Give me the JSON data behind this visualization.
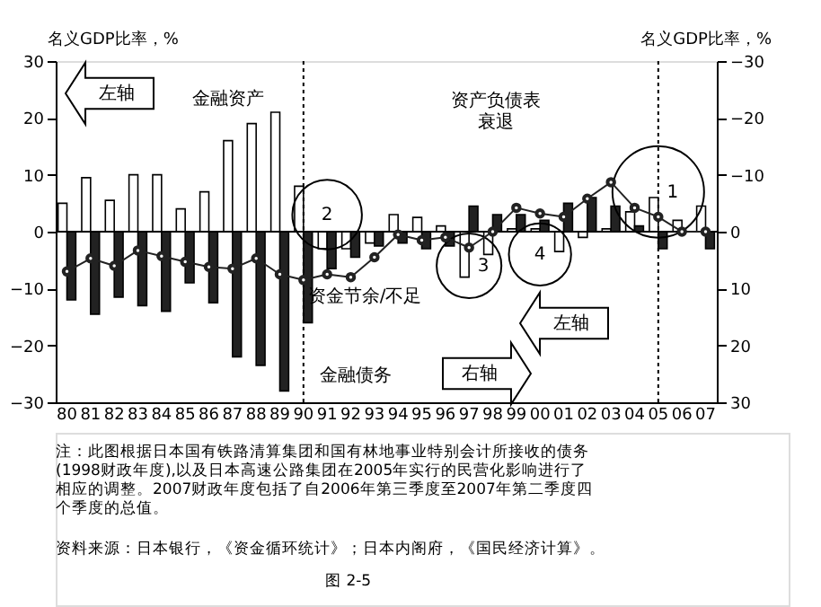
{
  "chart_data": {
    "type": "bar",
    "categories": [
      "80",
      "81",
      "82",
      "83",
      "84",
      "85",
      "86",
      "87",
      "88",
      "89",
      "90",
      "91",
      "92",
      "93",
      "94",
      "95",
      "96",
      "97",
      "98",
      "99",
      "00",
      "01",
      "02",
      "03",
      "04",
      "05",
      "06",
      "07"
    ],
    "series": [
      {
        "name": "金融资产",
        "color": "#ffffff",
        "values": [
          5,
          9.5,
          5.5,
          10,
          10,
          4,
          7,
          16,
          19,
          21,
          8,
          -3,
          -3,
          -2,
          3,
          2.5,
          1,
          -8,
          -4,
          0.5,
          0.5,
          -3.5,
          -1,
          0.5,
          3.5,
          6,
          2,
          4.5
        ]
      },
      {
        "name": "金融债务",
        "color": "#222222",
        "values": [
          -12,
          -14.5,
          -11.5,
          -13,
          -14,
          -9,
          -12.5,
          -22,
          -23.5,
          -28,
          -16,
          -6.5,
          -4.5,
          -2.5,
          -2,
          -3,
          -2.5,
          4.5,
          3,
          3,
          2,
          5,
          6,
          4.5,
          1,
          -3,
          null,
          -3
        ]
      },
      {
        "name": "资金节余/不足",
        "type": "line",
        "axis": "y2",
        "color": "#222222",
        "marker": "circle",
        "values": [
          7,
          4.7,
          6,
          3.3,
          4.3,
          5.3,
          6.2,
          6.5,
          4.7,
          7.5,
          8.5,
          7.5,
          8,
          4.5,
          0.5,
          1.5,
          1,
          2.8,
          0,
          -4.2,
          -3.2,
          -2.6,
          -5.8,
          -8.7,
          -4.2,
          -2.6,
          0,
          0
        ]
      }
    ],
    "ylabel": "名义GDP比率，%",
    "y2label": "名义GDP比率，%",
    "ylim": [
      -30,
      30
    ],
    "yticks": [
      -30,
      -20,
      -10,
      0,
      10,
      20,
      30
    ],
    "y2lim": [
      30,
      -30
    ],
    "y2ticks": [
      30,
      20,
      10,
      0,
      -10,
      -20,
      -30
    ],
    "ref_lines": [
      {
        "axis": "x",
        "value": "90",
        "line_style": "dotted"
      },
      {
        "axis": "x",
        "value": "05",
        "line_style": "dotted"
      }
    ],
    "grid": false,
    "annotations": [
      "左轴",
      "资产负债表衰退",
      "左轴",
      "右轴",
      {
        "text": "1",
        "x": "05",
        "y": 7
      },
      {
        "text": "2",
        "x": "91",
        "y": 3
      },
      {
        "text": "3",
        "x": "97",
        "y": -6
      },
      {
        "text": "4",
        "x": "00",
        "y": -4
      },
      "注：此图根据日本国有铁路清算集团和国有林地事业特别会计所接收的债务(1998财政年度),以及日本高速公路集团在2005年实行的民营化影响进行了相应的调整。2007财政年度包括了自2006年第三季度至2007年第二季度四个季度的总值。",
      "资料来源：日本银行，《资金循环统计》；日本内阁府，《国民经济计算》。",
      "图 2-5"
    ]
  }
}
